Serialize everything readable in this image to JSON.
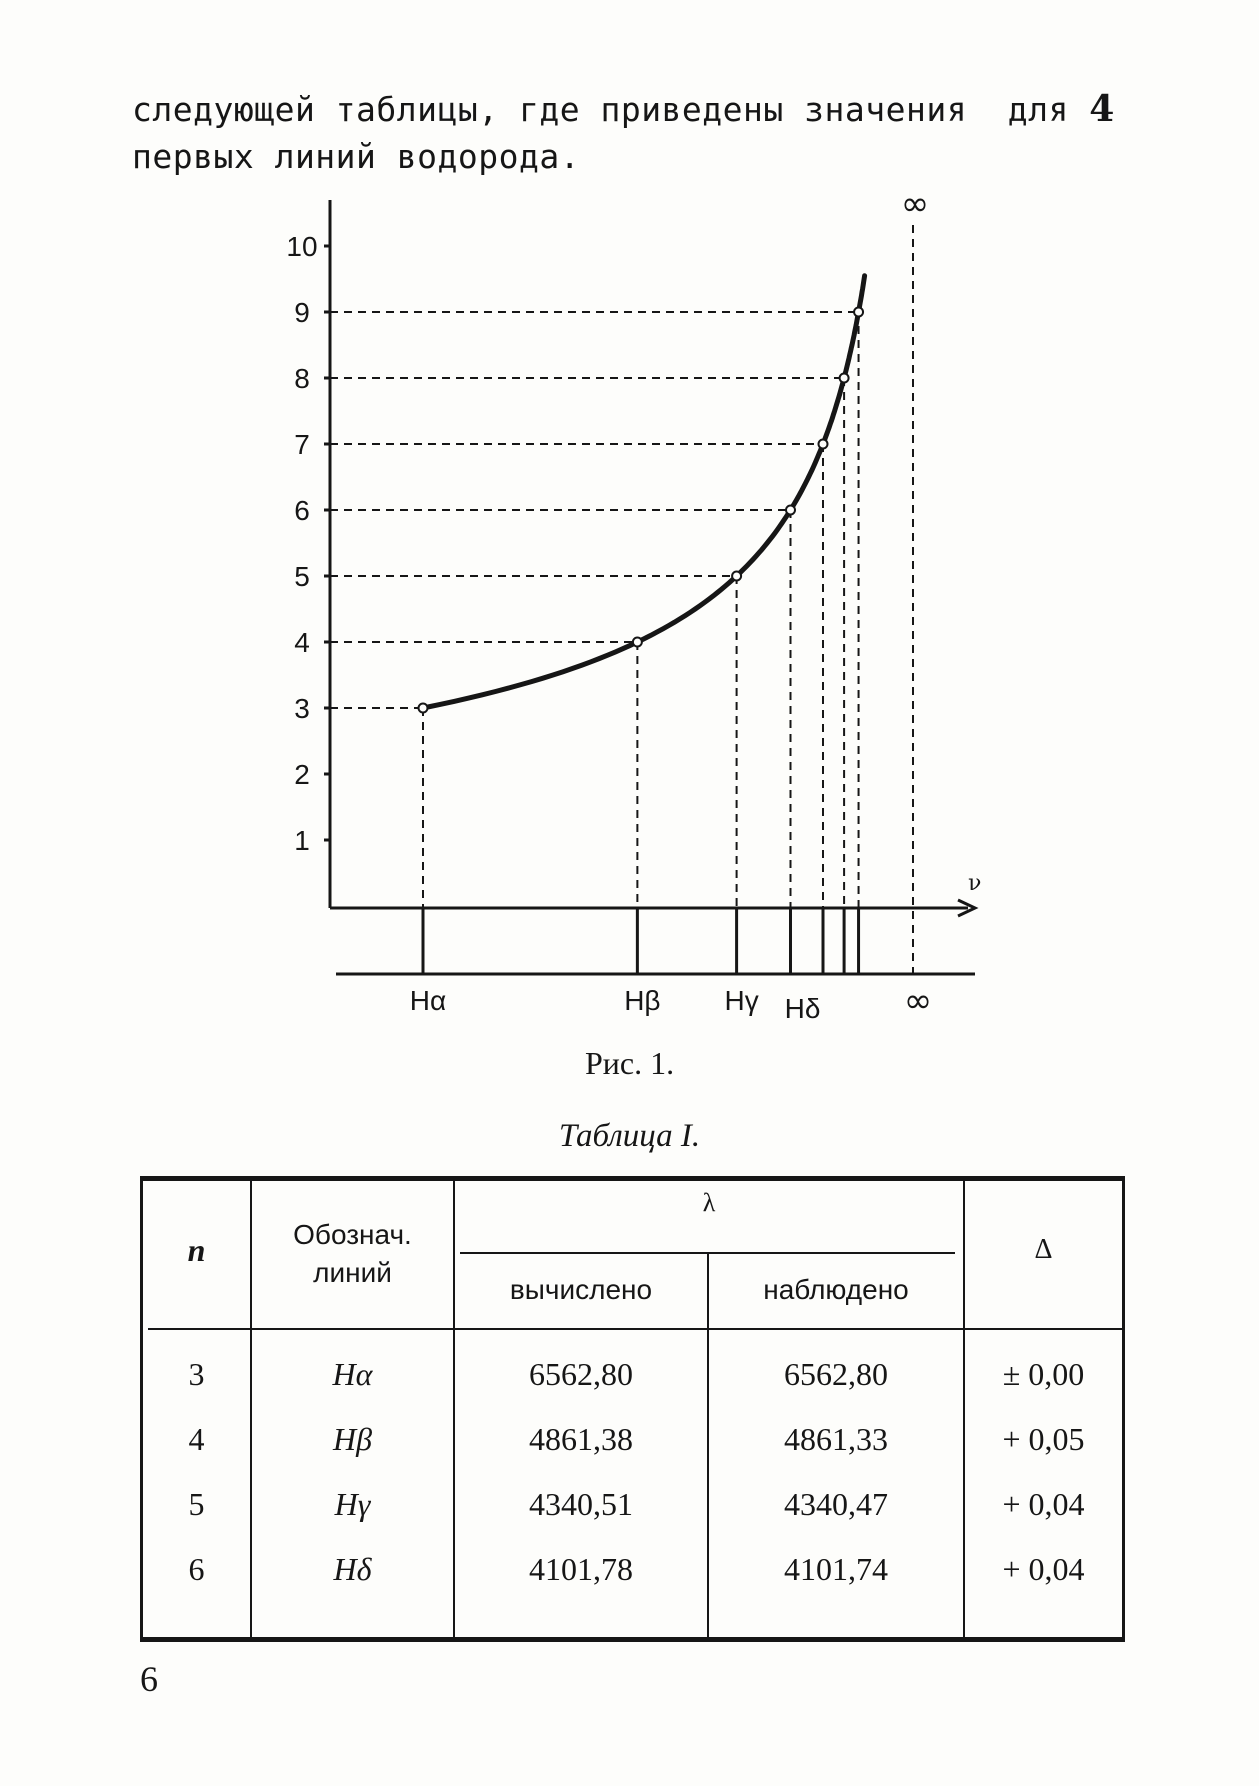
{
  "intro": {
    "line1": "следующей таблицы, где приведены значения  для",
    "line1_number": "4",
    "line2": "первых линий водорода."
  },
  "figure": {
    "y_ticks": [
      "10",
      "9",
      "8",
      "7",
      "6",
      "5",
      "4",
      "3",
      "2",
      "1"
    ],
    "axis_label": "ν",
    "infinity_top": "∞",
    "infinity_bottom": "∞",
    "series_labels": [
      "Hα",
      "Hβ",
      "Hγ",
      "Hδ"
    ],
    "caption": "Рис. 1."
  },
  "chart_data": {
    "type": "line",
    "x": [
      3,
      4,
      5,
      6,
      7,
      8,
      9
    ],
    "y": [
      3,
      4,
      5,
      6,
      7,
      8,
      9
    ],
    "xlabel": "ν",
    "ylabel": "",
    "ylim": [
      0,
      10
    ],
    "points_n": [
      3,
      4,
      5,
      6,
      7,
      8,
      9
    ],
    "grid": false
  },
  "table": {
    "title": "Таблица I.",
    "headers": {
      "n": "n",
      "designation": [
        "Обознач.",
        "линий"
      ],
      "lambda": "λ",
      "computed": "вычислено",
      "observed": "наблюдено",
      "delta": "Δ"
    },
    "rows": [
      {
        "n": "3",
        "line": "Hα",
        "computed": "6562,80",
        "observed": "6562,80",
        "delta": "± 0,00"
      },
      {
        "n": "4",
        "line": "Hβ",
        "computed": "4861,38",
        "observed": "4861,33",
        "delta": "+ 0,05"
      },
      {
        "n": "5",
        "line": "Hγ",
        "computed": "4340,51",
        "observed": "4340,47",
        "delta": "+ 0,04"
      },
      {
        "n": "6",
        "line": "Hδ",
        "computed": "4101,78",
        "observed": "4101,74",
        "delta": "+ 0,04"
      }
    ]
  },
  "page_number": "6"
}
